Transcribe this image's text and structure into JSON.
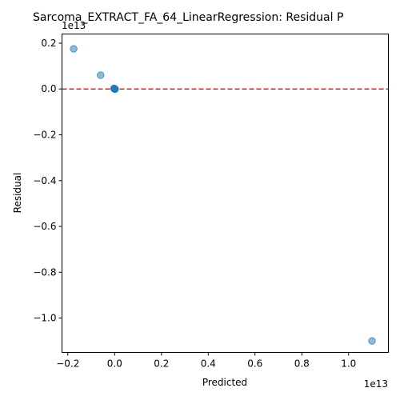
{
  "chart_data": {
    "type": "scatter",
    "title": "Sarcoma_EXTRACT_FA_64_LinearRegression: Residual P",
    "xlabel": "Predicted",
    "ylabel": "Residual",
    "x_offset_label": "1e13",
    "y_offset_label": "1e13",
    "xlim": [
      -0.225,
      1.17
    ],
    "ylim": [
      -1.15,
      0.24
    ],
    "x_ticks": [
      -0.2,
      0.0,
      0.2,
      0.4,
      0.6,
      0.8,
      1.0
    ],
    "x_tick_labels": [
      "−0.2",
      "0.0",
      "0.2",
      "0.4",
      "0.6",
      "0.8",
      "1.0"
    ],
    "y_ticks": [
      0.2,
      0.0,
      -0.2,
      -0.4,
      -0.6,
      -0.8,
      -1.0
    ],
    "y_tick_labels": [
      "0.2",
      "0.0",
      "−0.2",
      "−0.4",
      "−0.6",
      "−0.8",
      "−1.0"
    ],
    "grid": false,
    "points": [
      {
        "x": -0.175,
        "y": 0.175
      },
      {
        "x": -0.06,
        "y": 0.06
      },
      {
        "x": -0.003,
        "y": 0.003
      },
      {
        "x": 0.0,
        "y": 0.0
      },
      {
        "x": 0.002,
        "y": -0.001
      },
      {
        "x": 0.001,
        "y": 0.001
      },
      {
        "x": -0.001,
        "y": 0.0
      },
      {
        "x": 1.1,
        "y": -1.1
      }
    ],
    "reference_line": {
      "y": 0.0,
      "style": "dashed",
      "color": "#e41a1c"
    },
    "point_color": "#1f77b4"
  }
}
